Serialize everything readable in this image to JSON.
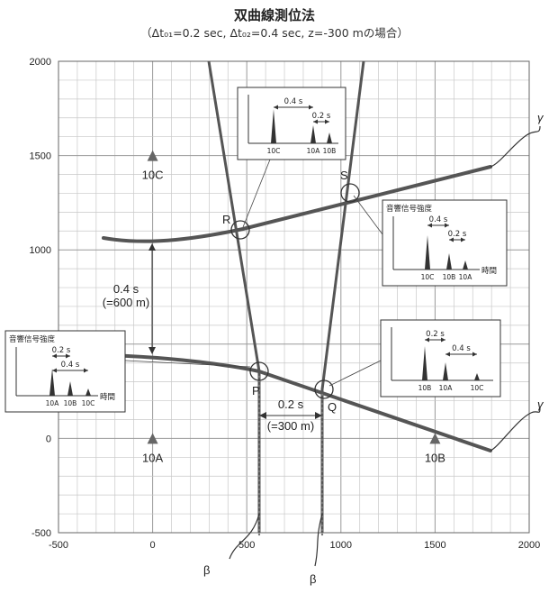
{
  "header": {
    "title": "双曲線測位法",
    "subtitle": "（Δt₀₁=0.2 sec, Δt₀₂=0.4 sec, z=-300 mの場合）"
  },
  "chart_data": {
    "type": "line",
    "xlim": [
      -500,
      2000
    ],
    "ylim": [
      -500,
      2000
    ],
    "x_ticks": [
      "-500",
      "0",
      "500",
      "1000",
      "1500",
      "2000"
    ],
    "y_ticks": [
      "-500",
      "0",
      "500",
      "1000",
      "1500",
      "2000"
    ],
    "grid": true,
    "stations": [
      {
        "label": "10A",
        "x": 0,
        "y": 0
      },
      {
        "label": "10B",
        "x": 1500,
        "y": 0
      },
      {
        "label": "10C",
        "x": 0,
        "y": 1500
      }
    ],
    "intersections": [
      {
        "label": "P",
        "x": 580,
        "y": 360
      },
      {
        "label": "Q",
        "x": 920,
        "y": 250
      },
      {
        "label": "R",
        "x": 490,
        "y": 1110
      },
      {
        "label": "S",
        "x": 1060,
        "y": 1300
      }
    ],
    "curve_labels": {
      "gamma_upper": "γ",
      "gamma_lower": "γ",
      "beta_left": "β",
      "beta_right": "β"
    },
    "dimension_annotations": {
      "vertical_line1": "0.4 s",
      "vertical_line2": "(=600 m)",
      "horizontal_line1": "0.2 s",
      "horizontal_line2": "(=300 m)"
    },
    "insets": [
      {
        "title": "",
        "arrow1": "0.4 s",
        "arrow2": "0.2 s",
        "peaks": [
          "10C",
          "10A",
          "10B"
        ],
        "xlabel": ""
      },
      {
        "title": "音響信号強度",
        "arrow1": "0.4 s",
        "arrow2": "0.2 s",
        "peaks": [
          "10C",
          "10B",
          "10A"
        ],
        "xlabel": "時間"
      },
      {
        "title": "音響信号強度",
        "arrow1": "0.2 s",
        "arrow2": "0.4 s",
        "peaks": [
          "10A",
          "10B",
          "10C"
        ],
        "xlabel": "時間"
      },
      {
        "title": "",
        "arrow1": "0.2 s",
        "arrow2": "0.4 s",
        "peaks": [
          "10B",
          "10A",
          "10C"
        ],
        "xlabel": ""
      }
    ]
  }
}
